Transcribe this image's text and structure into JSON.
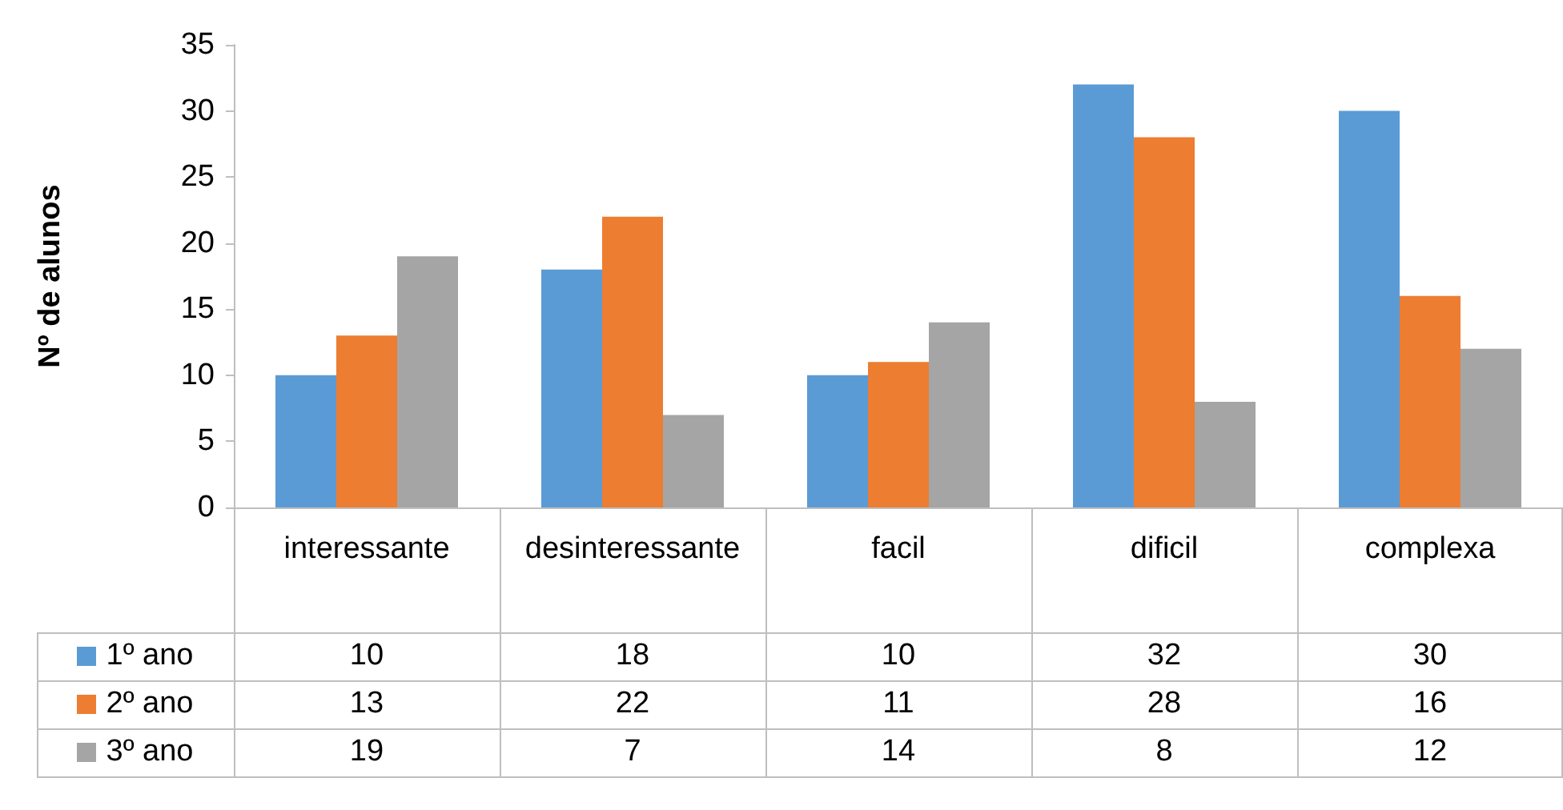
{
  "chart_data": {
    "type": "bar",
    "ylabel": "Nº de alunos",
    "categories": [
      "interessante",
      "desinteressante",
      "facil",
      "dificil",
      "complexa"
    ],
    "series": [
      {
        "name": "1º ano",
        "color": "#5b9bd5",
        "values": [
          10,
          18,
          10,
          32,
          30
        ]
      },
      {
        "name": "2º ano",
        "color": "#ed7d31",
        "values": [
          13,
          22,
          11,
          28,
          16
        ]
      },
      {
        "name": "3º ano",
        "color": "#a5a5a5",
        "values": [
          19,
          7,
          14,
          8,
          12
        ]
      }
    ],
    "ylim": [
      0,
      35
    ],
    "yticks": [
      0,
      5,
      10,
      15,
      20,
      25,
      30,
      35
    ],
    "grid": false,
    "legend": "bottom",
    "data_labels": true
  }
}
